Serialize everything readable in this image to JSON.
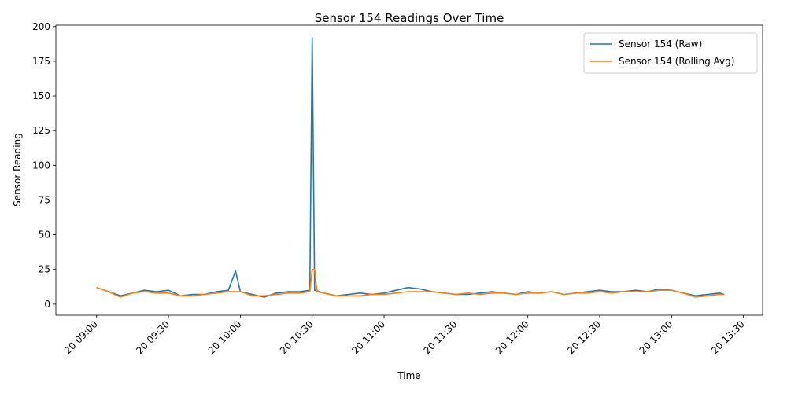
{
  "chart_data": {
    "type": "line",
    "title": "Sensor 154 Readings Over Time",
    "xlabel": "Time",
    "ylabel": "Sensor Reading",
    "xlim": [
      "2024-01-20 08:43",
      "2024-01-20 13:38"
    ],
    "ylim": [
      -8,
      201
    ],
    "grid": false,
    "legend_position": "top-right",
    "x_ticks": [
      {
        "t": "09:00",
        "label": "20 09:00"
      },
      {
        "t": "09:30",
        "label": "20 09:30"
      },
      {
        "t": "10:00",
        "label": "20 10:00"
      },
      {
        "t": "10:30",
        "label": "20 10:30"
      },
      {
        "t": "11:00",
        "label": "20 11:00"
      },
      {
        "t": "11:30",
        "label": "20 11:30"
      },
      {
        "t": "12:00",
        "label": "20 12:00"
      },
      {
        "t": "12:30",
        "label": "20 12:30"
      },
      {
        "t": "13:00",
        "label": "20 13:00"
      },
      {
        "t": "13:30",
        "label": "20 13:30"
      }
    ],
    "y_ticks": [
      0,
      25,
      50,
      75,
      100,
      125,
      150,
      175,
      200
    ],
    "series": [
      {
        "name": "Sensor 154 (Raw)",
        "color": "#1f77b4",
        "x": [
          "09:00",
          "09:05",
          "09:10",
          "09:15",
          "09:20",
          "09:25",
          "09:30",
          "09:35",
          "09:40",
          "09:45",
          "09:50",
          "09:55",
          "09:58",
          "10:00",
          "10:05",
          "10:10",
          "10:15",
          "10:20",
          "10:25",
          "10:29",
          "10:30",
          "10:31",
          "10:35",
          "10:40",
          "10:45",
          "10:50",
          "10:55",
          "11:00",
          "11:05",
          "11:10",
          "11:15",
          "11:20",
          "11:25",
          "11:30",
          "11:35",
          "11:40",
          "11:45",
          "11:50",
          "11:55",
          "12:00",
          "12:05",
          "12:10",
          "12:15",
          "12:20",
          "12:25",
          "12:30",
          "12:35",
          "12:40",
          "12:45",
          "12:50",
          "12:55",
          "13:00",
          "13:05",
          "13:10",
          "13:15",
          "13:20",
          "13:22"
        ],
        "y": [
          12,
          9,
          6,
          8,
          10,
          9,
          10,
          6,
          7,
          7,
          9,
          10,
          24,
          9,
          7,
          5,
          8,
          9,
          9,
          10,
          192,
          10,
          8,
          6,
          7,
          8,
          7,
          8,
          10,
          12,
          11,
          9,
          8,
          7,
          7,
          8,
          9,
          8,
          7,
          9,
          8,
          9,
          7,
          8,
          9,
          10,
          9,
          9,
          10,
          9,
          11,
          10,
          8,
          6,
          7,
          8,
          7
        ]
      },
      {
        "name": "Sensor 154 (Rolling Avg)",
        "color": "#ff7f0e",
        "x": [
          "09:00",
          "09:05",
          "09:10",
          "09:15",
          "09:20",
          "09:25",
          "09:30",
          "09:35",
          "09:40",
          "09:45",
          "09:50",
          "09:55",
          "10:00",
          "10:05",
          "10:10",
          "10:15",
          "10:20",
          "10:25",
          "10:29",
          "10:30",
          "10:31",
          "10:32",
          "10:35",
          "10:40",
          "10:45",
          "10:50",
          "10:55",
          "11:00",
          "11:05",
          "11:10",
          "11:15",
          "11:20",
          "11:25",
          "11:30",
          "11:35",
          "11:40",
          "11:45",
          "11:50",
          "11:55",
          "12:00",
          "12:05",
          "12:10",
          "12:15",
          "12:20",
          "12:25",
          "12:30",
          "12:35",
          "12:40",
          "12:45",
          "12:50",
          "12:55",
          "13:00",
          "13:05",
          "13:10",
          "13:15",
          "13:20",
          "13:22"
        ],
        "y": [
          12,
          9,
          5,
          8,
          9,
          8,
          8,
          6,
          6,
          7,
          8,
          9,
          9,
          6,
          6,
          7,
          8,
          8,
          9,
          25,
          25,
          9,
          8,
          6,
          6,
          6,
          7,
          7,
          8,
          9,
          9,
          9,
          8,
          7,
          8,
          7,
          8,
          8,
          7,
          8,
          8,
          9,
          7,
          8,
          8,
          9,
          8,
          9,
          9,
          9,
          10,
          10,
          8,
          5,
          6,
          7,
          7
        ]
      }
    ]
  }
}
